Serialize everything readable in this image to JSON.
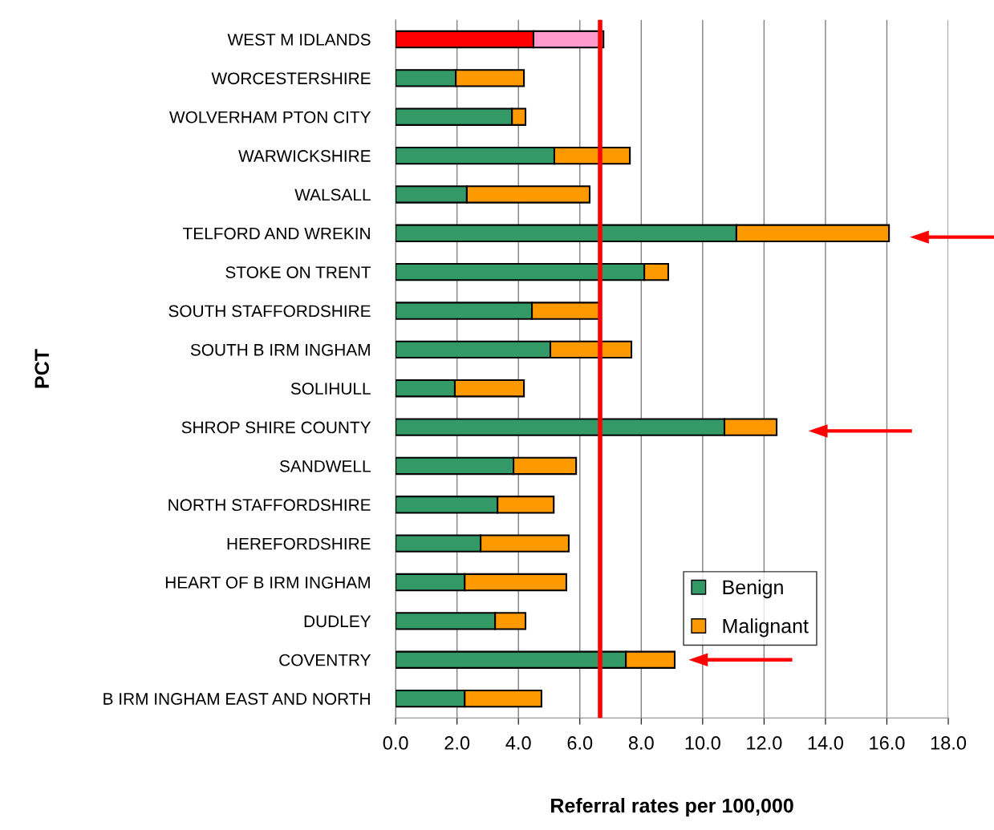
{
  "chart_data": {
    "type": "bar",
    "orientation": "horizontal",
    "stacked": true,
    "categories": [
      "WEST M IDLANDS",
      "WORCESTERSHIRE",
      "WOLVERHAM PTON CITY",
      "WARWICKSHIRE",
      "WALSALL",
      "TELFORD AND WREKIN",
      "STOKE ON TRENT",
      "SOUTH STAFFORDSHIRE",
      "SOUTH B IRM INGHAM",
      "SOLIHULL",
      "SHROP SHIRE COUNTY",
      "SANDWELL",
      "NORTH STAFFORDSHIRE",
      "HEREFORDSHIRE",
      "HEART OF B IRM INGHAM",
      "DUDLEY",
      "COVENTRY",
      "B IRM INGHAM EAST AND NORTH"
    ],
    "series": [
      {
        "name": "Benign",
        "color": "#339966",
        "colors": [
          "#ff0000",
          "#339966",
          "#339966",
          "#339966",
          "#339966",
          "#339966",
          "#339966",
          "#339966",
          "#339966",
          "#339966",
          "#339966",
          "#339966",
          "#339966",
          "#339966",
          "#339966",
          "#339966",
          "#339966",
          "#339966"
        ],
        "values": [
          4.49,
          1.96,
          3.79,
          5.17,
          2.32,
          11.1,
          8.1,
          4.44,
          5.04,
          1.93,
          10.71,
          3.84,
          3.32,
          2.77,
          2.25,
          3.24,
          7.5,
          2.25
        ]
      },
      {
        "name": "Malignant",
        "color": "#ff9900",
        "colors": [
          "#ff99cc",
          "#ff9900",
          "#ff9900",
          "#ff9900",
          "#ff9900",
          "#ff9900",
          "#ff9900",
          "#ff9900",
          "#ff9900",
          "#ff9900",
          "#ff9900",
          "#ff9900",
          "#ff9900",
          "#ff9900",
          "#ff9900",
          "#ff9900",
          "#ff9900",
          "#ff9900"
        ],
        "values": [
          2.28,
          2.22,
          0.44,
          2.46,
          4.0,
          4.97,
          0.78,
          2.2,
          2.64,
          2.25,
          1.7,
          2.04,
          1.83,
          2.87,
          3.31,
          0.99,
          1.59,
          2.5
        ]
      }
    ],
    "xlim": [
      0,
      18
    ],
    "xticks": [
      {
        "value": 0,
        "label": "0.0"
      },
      {
        "value": 2,
        "label": "2.0"
      },
      {
        "value": 4,
        "label": "4.0"
      },
      {
        "value": 6,
        "label": "6.0"
      },
      {
        "value": 8,
        "label": "8.0"
      },
      {
        "value": 10,
        "label": "10.0"
      },
      {
        "value": 12,
        "label": "12.0"
      },
      {
        "value": 14,
        "label": "14.0"
      },
      {
        "value": 16,
        "label": "16.0"
      },
      {
        "value": 18,
        "label": "18.0"
      }
    ],
    "xlabel": "Referral rates per 100,000",
    "ylabel": "PCT",
    "ref_lines": [
      {
        "axis": "x",
        "value": 6.66,
        "color": "#ff0000"
      }
    ],
    "grid": "x",
    "legend": "bottom right"
  }
}
